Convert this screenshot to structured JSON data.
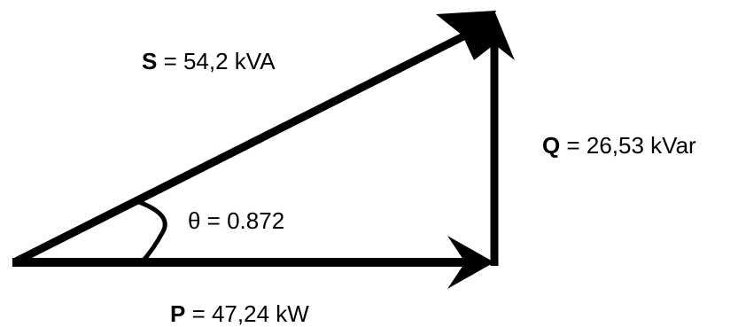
{
  "diagram": {
    "title": "",
    "colors": {
      "stroke": "#000000",
      "background": "#ffffff",
      "text": "#000000"
    },
    "vectors": {
      "S": {
        "symbol": "S",
        "value_text": " = 54,2 kVA",
        "value": 54.2,
        "unit": "kVA"
      },
      "Q": {
        "symbol": "Q",
        "value_text": " = 26,53 kVar",
        "value": 26.53,
        "unit": "kVar"
      },
      "P": {
        "symbol": "P",
        "value_text": " = 47,24 kW",
        "value": 47.24,
        "unit": "kW"
      }
    },
    "angle": {
      "text": "θ = 0.872"
    }
  }
}
